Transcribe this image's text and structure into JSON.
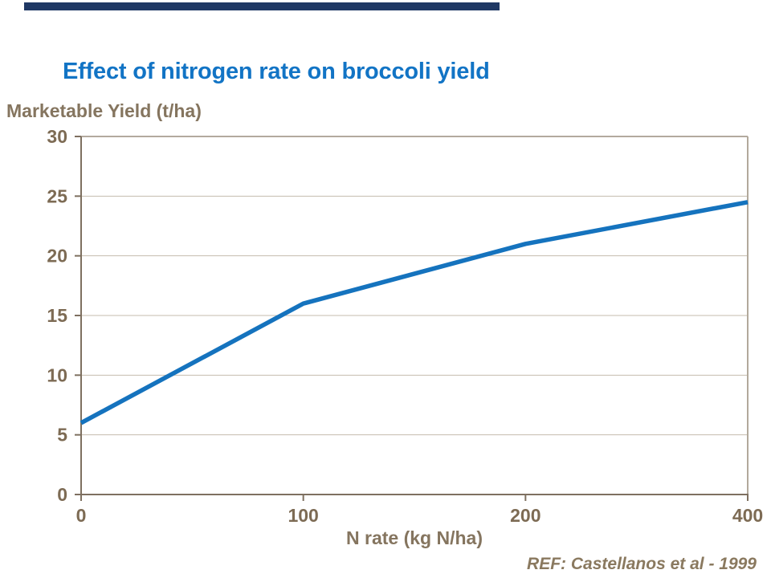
{
  "slide": {
    "accent_bar_color": "#1F3864",
    "background_color": "#FFFFFF"
  },
  "chart_data": {
    "type": "line",
    "title": "Effect of nitrogen rate on broccoli yield",
    "ylabel": "Marketable Yield (t/ha)",
    "xlabel": "N rate (kg N/ha)",
    "source": "REF: Castellanos et al - 1999",
    "x_categories": [
      "0",
      "100",
      "200",
      "400"
    ],
    "series": [
      {
        "name": "Marketable Yield (t/ha)",
        "values": [
          6,
          16,
          21,
          24.5
        ]
      }
    ],
    "y_ticks": [
      0,
      5,
      10,
      15,
      20,
      25,
      30
    ],
    "ylim": [
      0,
      30
    ],
    "x_axis_spacing": "categorical-even",
    "grid": "horizontal",
    "legend": "none",
    "colors": {
      "title": "#1274C5",
      "line": "#1573BE",
      "axis": "#7E7060",
      "plot_border_right": "#B2A99C",
      "plot_border_top": "#A89E90",
      "gridline": "#C4BBAE",
      "tick_label": "#7D6B54",
      "axis_title": "#85755F",
      "source_text": "#8A795F"
    }
  }
}
